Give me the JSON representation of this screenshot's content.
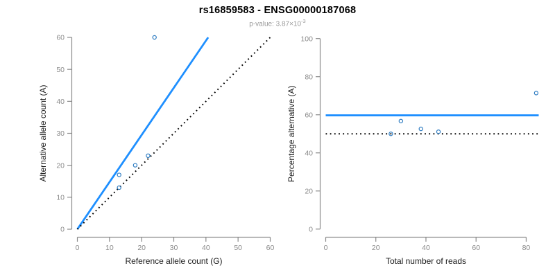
{
  "header": {
    "title": "rs16859583 - ENSG00000187068",
    "subtitle_text": "p-value: 3.87×10",
    "subtitle_exponent": "-3"
  },
  "colors": {
    "fit_line": "#1E8FFF",
    "point_stroke": "#2E7CC2",
    "reference_line": "#000000",
    "axis": "#8A8A8A",
    "tick_label": "#8A8A8A",
    "axis_label": "#1A1A1A",
    "title": "#000000",
    "subtitle": "#9A9A9A",
    "background": "#FFFFFF"
  },
  "chart_data": [
    {
      "id": "allele-counts-panel",
      "type": "scatter",
      "title": "",
      "xlabel": "Reference allele count (G)",
      "ylabel": "Alternative allele count (A)",
      "xlim": [
        0,
        60
      ],
      "ylim": [
        0,
        60
      ],
      "xticks": [
        0,
        10,
        20,
        30,
        40,
        50,
        60
      ],
      "yticks": [
        0,
        10,
        20,
        30,
        40,
        50,
        60
      ],
      "grid": false,
      "points": [
        [
          13,
          13
        ],
        [
          13,
          17
        ],
        [
          18,
          20
        ],
        [
          22,
          23
        ],
        [
          24,
          60
        ]
      ],
      "lines": [
        {
          "name": "fitted-proportion-line",
          "kind": "segment",
          "x1": 0,
          "y1": 0,
          "x2": 40.7,
          "y2": 60,
          "style": "solid",
          "color_key": "fit_line",
          "width": 2.8
        },
        {
          "name": "identity-line",
          "kind": "segment",
          "x1": 0,
          "y1": 0,
          "x2": 60,
          "y2": 60,
          "style": "dotted",
          "color_key": "reference_line",
          "width": 2
        }
      ]
    },
    {
      "id": "percentage-panel",
      "type": "scatter",
      "title": "",
      "xlabel": "Total number of reads",
      "ylabel": "Percentage alternative (A)",
      "xlim": [
        0,
        85
      ],
      "ylim": [
        0,
        100
      ],
      "xticks": [
        0,
        20,
        40,
        60,
        80
      ],
      "yticks": [
        0,
        20,
        40,
        60,
        80,
        100
      ],
      "grid": false,
      "points": [
        [
          26,
          50
        ],
        [
          30,
          56.7
        ],
        [
          38,
          52.6
        ],
        [
          45,
          51.1
        ],
        [
          84,
          71.4
        ]
      ],
      "lines": [
        {
          "name": "fitted-percentage-line",
          "kind": "hline",
          "y": 59.7,
          "style": "solid",
          "color_key": "fit_line",
          "width": 2.8
        },
        {
          "name": "null-percentage-line",
          "kind": "hline",
          "y": 50,
          "style": "dotted",
          "color_key": "reference_line",
          "width": 2
        }
      ]
    }
  ]
}
